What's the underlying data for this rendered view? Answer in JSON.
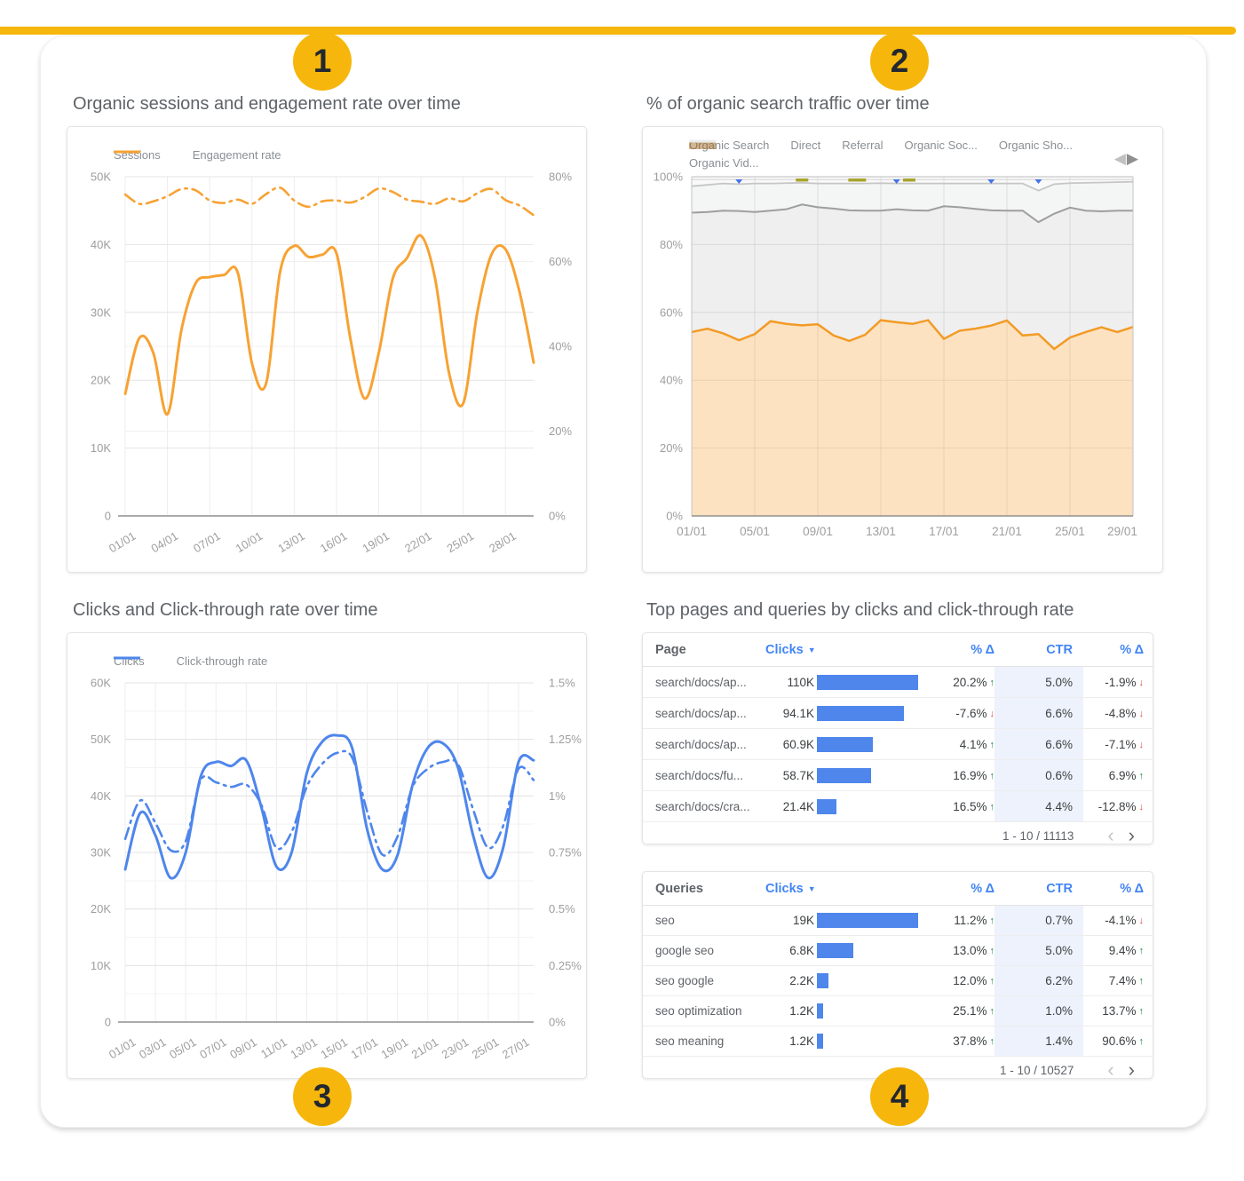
{
  "accent": {
    "yellow": "#F6B60B",
    "badge_text": "#23272F"
  },
  "badges": [
    {
      "label": "1"
    },
    {
      "label": "2"
    },
    {
      "label": "3"
    },
    {
      "label": "4"
    }
  ],
  "icons": {
    "prev_triangle": "◀",
    "next_triangle": "▶",
    "page_prev": "‹",
    "page_next": "›",
    "sort_desc": "▼",
    "up_arrow": "↑",
    "down_arrow": "↓"
  },
  "colors": {
    "orange": "#F7A233",
    "orange_area_line": "#F29B26",
    "orange_fill": "rgba(244,160,50,0.30)",
    "blue": "#4E86EC",
    "header_blue": "#4285F4",
    "bar_blue": "#4E86EC",
    "green": "#1A8A3C",
    "red": "#E8473C",
    "gray_direct": "#9E9E9E",
    "gray_referral": "#C6C6C6",
    "gray_social": "#DADADA",
    "axis_text": "#9E9E9E",
    "legend_text": "#8A8F94",
    "title_text": "#5F6368",
    "marker_blue": "#4472E8",
    "marker_olive": "#A8A42C",
    "ctr_highlight": "#EDF2FC"
  },
  "chart_data": [
    {
      "id": "sessions-engagement",
      "type": "line",
      "title": "Organic sessions and engagement rate over time",
      "legend": [
        {
          "label": "Sessions",
          "dash": false
        },
        {
          "label": "Engagement rate",
          "dash": true
        }
      ],
      "x_ticks": [
        "01/01",
        "04/01",
        "07/01",
        "10/01",
        "13/01",
        "16/01",
        "19/01",
        "22/01",
        "25/01",
        "28/01"
      ],
      "x_tick_step": 3,
      "left_ticks": [
        "50K",
        "40K",
        "30K",
        "20K",
        "10K",
        "0"
      ],
      "right_ticks": [
        "80%",
        "60%",
        "40%",
        "20%",
        "0%"
      ],
      "ylim_left": [
        0,
        50
      ],
      "ylim_right": [
        0,
        80
      ],
      "series": [
        {
          "name": "Sessions",
          "axis": "left",
          "unit": "K",
          "values": [
            18,
            26.2,
            24,
            15,
            27.5,
            34.3,
            35.2,
            35.5,
            35.8,
            22.5,
            19.5,
            36,
            39.8,
            38.2,
            38.5,
            38.7,
            26,
            17.3,
            24,
            35,
            38,
            41.3,
            35,
            21,
            16.6,
            30,
            38.5,
            39.3,
            33,
            22.6
          ]
        },
        {
          "name": "Engagement rate",
          "axis": "right",
          "unit": "%",
          "values": [
            75.8,
            73.6,
            74.2,
            75.4,
            77.1,
            76.8,
            74.4,
            73.8,
            74.6,
            73.6,
            75.9,
            77.4,
            74.4,
            72.9,
            74.2,
            74.4,
            73.9,
            75.2,
            77.2,
            76.4,
            74.6,
            74.1,
            73.6,
            74.9,
            74.2,
            76.1,
            77.1,
            74.5,
            73.2,
            70.9
          ]
        }
      ]
    },
    {
      "id": "organic-share",
      "type": "area",
      "title": "% of organic search traffic over time",
      "legend": [
        {
          "label": "Organic Search"
        },
        {
          "label": "Direct"
        },
        {
          "label": "Referral"
        },
        {
          "label": "Organic Soc..."
        },
        {
          "label": "Organic Sho..."
        },
        {
          "label": "Organic Vid..."
        }
      ],
      "x_ticks": [
        "01/01",
        "05/01",
        "09/01",
        "13/01",
        "17/01",
        "21/01",
        "25/01",
        "29/01"
      ],
      "x_tick_step": 4,
      "y_ticks": [
        "100%",
        "80%",
        "60%",
        "40%",
        "20%",
        "0%"
      ],
      "ylim": [
        0,
        100
      ],
      "series": [
        {
          "name": "Organic Search",
          "boundary": [
            54.2,
            55.2,
            53.8,
            51.8,
            53.6,
            57.4,
            56.6,
            56.2,
            56.5,
            53.2,
            51.6,
            53.4,
            57.7,
            57.1,
            56.6,
            57.7,
            52.2,
            54.6,
            55.2,
            56.1,
            57.6,
            53.2,
            53.6,
            49.2,
            52.6,
            54.2,
            55.6,
            54.2,
            55.7
          ]
        },
        {
          "name": "Direct",
          "boundary": [
            89.4,
            89.6,
            90,
            89.9,
            89.6,
            90,
            90.4,
            91.8,
            91,
            90.6,
            90.1,
            90,
            90,
            90.4,
            90.1,
            90,
            91.3,
            91,
            90.5,
            90.1,
            90,
            90,
            86.6,
            89.1,
            90.9,
            90,
            89.8,
            90,
            90
          ]
        },
        {
          "name": "Referral",
          "boundary": [
            97.2,
            97.6,
            98,
            97.8,
            98,
            98,
            98.1,
            98.2,
            98,
            98,
            98,
            98,
            98.1,
            98,
            98,
            98,
            98,
            98,
            98,
            98,
            98,
            98,
            95.9,
            97.8,
            98.1,
            98.2,
            98.3,
            98.4,
            98.5
          ]
        },
        {
          "name": "Organic Social / Shopping / Video",
          "boundary_const": 99.15
        }
      ],
      "markers": [
        {
          "day": 4,
          "kind": "triangle"
        },
        {
          "day": 8,
          "kind": "dash"
        },
        {
          "day": 11.5,
          "kind": "dash-long"
        },
        {
          "day": 14,
          "kind": "triangle"
        },
        {
          "day": 14.8,
          "kind": "dash"
        },
        {
          "day": 20,
          "kind": "triangle"
        },
        {
          "day": 23,
          "kind": "triangle"
        }
      ]
    },
    {
      "id": "clicks-ctr",
      "type": "line",
      "title": "Clicks and Click-through rate over time",
      "legend": [
        {
          "label": "Clicks",
          "dash": false
        },
        {
          "label": "Click-through rate",
          "dash": true
        }
      ],
      "x_ticks": [
        "01/01",
        "03/01",
        "05/01",
        "07/01",
        "09/01",
        "11/01",
        "13/01",
        "15/01",
        "17/01",
        "19/01",
        "21/01",
        "23/01",
        "25/01",
        "27/01"
      ],
      "x_tick_step": 2,
      "left_ticks": [
        "60K",
        "50K",
        "40K",
        "30K",
        "20K",
        "10K",
        "0"
      ],
      "right_ticks": [
        "1.5%",
        "1.25%",
        "1%",
        "0.75%",
        "0.5%",
        "0.25%",
        "0%"
      ],
      "ylim_left": [
        0,
        60
      ],
      "ylim_right": [
        0,
        1.5
      ],
      "minor_grid": true,
      "series": [
        {
          "name": "Clicks",
          "axis": "left",
          "unit": "K",
          "values": [
            27,
            37,
            33,
            25.5,
            30,
            43.5,
            46,
            45.3,
            46.3,
            38,
            27.5,
            30,
            44,
            49.5,
            50.7,
            48.5,
            34,
            27,
            29.5,
            42,
            48.5,
            49.3,
            45,
            33,
            25.5,
            31,
            46,
            46.3
          ]
        },
        {
          "name": "Click-through rate",
          "axis": "right",
          "unit": "%",
          "values": [
            0.81,
            0.98,
            0.88,
            0.76,
            0.8,
            1.07,
            1.06,
            1.04,
            1.05,
            0.96,
            0.77,
            0.84,
            1.04,
            1.14,
            1.19,
            1.17,
            0.93,
            0.74,
            0.82,
            1.04,
            1.12,
            1.15,
            1.14,
            0.94,
            0.77,
            0.87,
            1.12,
            1.07
          ]
        }
      ]
    },
    {
      "id": "top-pages",
      "type": "table",
      "section_title": "Top pages and queries by clicks and click-through rate",
      "columns": [
        {
          "label": "Page"
        },
        {
          "label": "Clicks",
          "sort": "desc"
        },
        {
          "label": "% Δ"
        },
        {
          "label": "CTR"
        },
        {
          "label": "% Δ"
        }
      ],
      "max_clicks": 110000,
      "rows": [
        {
          "name": "search/docs/ap...",
          "clicks_label": "110K",
          "clicks": 110000,
          "delta_clicks": "20.2%",
          "delta_clicks_dir": "up",
          "ctr": "5.0%",
          "delta_ctr": "-1.9%",
          "delta_ctr_dir": "down"
        },
        {
          "name": "search/docs/ap...",
          "clicks_label": "94.1K",
          "clicks": 94100,
          "delta_clicks": "-7.6%",
          "delta_clicks_dir": "down",
          "ctr": "6.6%",
          "delta_ctr": "-4.8%",
          "delta_ctr_dir": "down"
        },
        {
          "name": "search/docs/ap...",
          "clicks_label": "60.9K",
          "clicks": 60900,
          "delta_clicks": "4.1%",
          "delta_clicks_dir": "up",
          "ctr": "6.6%",
          "delta_ctr": "-7.1%",
          "delta_ctr_dir": "down"
        },
        {
          "name": "search/docs/fu...",
          "clicks_label": "58.7K",
          "clicks": 58700,
          "delta_clicks": "16.9%",
          "delta_clicks_dir": "up",
          "ctr": "0.6%",
          "delta_ctr": "6.9%",
          "delta_ctr_dir": "up"
        },
        {
          "name": "search/docs/cra...",
          "clicks_label": "21.4K",
          "clicks": 21400,
          "delta_clicks": "16.5%",
          "delta_clicks_dir": "up",
          "ctr": "4.4%",
          "delta_ctr": "-12.8%",
          "delta_ctr_dir": "down"
        }
      ],
      "pagination": "1 - 10 / 11113"
    },
    {
      "id": "top-queries",
      "type": "table",
      "columns": [
        {
          "label": "Queries"
        },
        {
          "label": "Clicks",
          "sort": "desc"
        },
        {
          "label": "% Δ"
        },
        {
          "label": "CTR"
        },
        {
          "label": "% Δ"
        }
      ],
      "max_clicks": 19000,
      "rows": [
        {
          "name": "seo",
          "clicks_label": "19K",
          "clicks": 19000,
          "delta_clicks": "11.2%",
          "delta_clicks_dir": "up",
          "ctr": "0.7%",
          "delta_ctr": "-4.1%",
          "delta_ctr_dir": "down"
        },
        {
          "name": "google seo",
          "clicks_label": "6.8K",
          "clicks": 6800,
          "delta_clicks": "13.0%",
          "delta_clicks_dir": "up",
          "ctr": "5.0%",
          "delta_ctr": "9.4%",
          "delta_ctr_dir": "up"
        },
        {
          "name": "seo google",
          "clicks_label": "2.2K",
          "clicks": 2200,
          "delta_clicks": "12.0%",
          "delta_clicks_dir": "up",
          "ctr": "6.2%",
          "delta_ctr": "7.4%",
          "delta_ctr_dir": "up"
        },
        {
          "name": "seo optimization",
          "clicks_label": "1.2K",
          "clicks": 1200,
          "delta_clicks": "25.1%",
          "delta_clicks_dir": "up",
          "ctr": "1.0%",
          "delta_ctr": "13.7%",
          "delta_ctr_dir": "up"
        },
        {
          "name": "seo meaning",
          "clicks_label": "1.2K",
          "clicks": 1200,
          "delta_clicks": "37.8%",
          "delta_clicks_dir": "up",
          "ctr": "1.4%",
          "delta_ctr": "90.6%",
          "delta_ctr_dir": "up"
        }
      ],
      "pagination": "1 - 10 / 10527"
    }
  ]
}
